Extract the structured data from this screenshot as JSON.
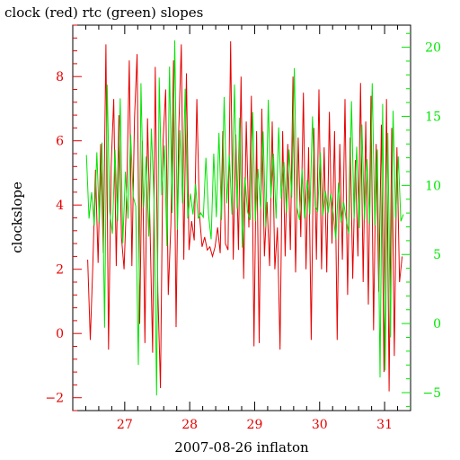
{
  "chart_data": {
    "type": "line",
    "title": "clock (red) rtc (green) slopes",
    "xlabel": "2007-08-26 inflaton",
    "ylabel": "clockslope",
    "xlim": [
      26.2,
      31.4
    ],
    "ylim_left": [
      -2.4,
      9.6
    ],
    "ylim_right": [
      -6.3,
      21.6
    ],
    "x_ticks": [
      27,
      28,
      29,
      30,
      31
    ],
    "x_tick_labels": [
      "27",
      "28",
      "29",
      "30",
      "31"
    ],
    "y_ticks_left": [
      -2,
      0,
      2,
      4,
      6,
      8
    ],
    "y_tick_labels_left": [
      "−2",
      "0",
      "2",
      "4",
      "6",
      "8"
    ],
    "y_ticks_right": [
      -5,
      0,
      5,
      10,
      15,
      20
    ],
    "y_tick_labels_right": [
      "−5",
      "0",
      "5",
      "10",
      "15",
      "20"
    ],
    "grid": false,
    "colors": {
      "axes": "#000000",
      "left_axis": "#e60000",
      "right_axis": "#00e600"
    },
    "series": [
      {
        "color": "#e60000",
        "axis": "left",
        "x": [
          26.43,
          26.47,
          26.51,
          26.55,
          26.59,
          26.63,
          26.67,
          26.71,
          26.75,
          26.79,
          26.83,
          26.87,
          26.91,
          26.95,
          26.99,
          27.03,
          27.07,
          27.11,
          27.15,
          27.19,
          27.23,
          27.27,
          27.31,
          27.35,
          27.39,
          27.43,
          27.47,
          27.51,
          27.55,
          27.59,
          27.63,
          27.67,
          27.71,
          27.75,
          27.79,
          27.83,
          27.87,
          27.91,
          27.95,
          27.99,
          28.03,
          28.07,
          28.11,
          28.15,
          28.19,
          28.23,
          28.27,
          28.31,
          28.35,
          28.39,
          28.43,
          28.47,
          28.51,
          28.55,
          28.59,
          28.63,
          28.67,
          28.71,
          28.75,
          28.79,
          28.83,
          28.87,
          28.91,
          28.95,
          28.99,
          29.03,
          29.07,
          29.11,
          29.15,
          29.19,
          29.23,
          29.27,
          29.31,
          29.35,
          29.39,
          29.43,
          29.47,
          29.51,
          29.55,
          29.59,
          29.63,
          29.67,
          29.71,
          29.75,
          29.79,
          29.83,
          29.87,
          29.91,
          29.95,
          29.99,
          30.03,
          30.07,
          30.11,
          30.15,
          30.19,
          30.23,
          30.27,
          30.31,
          30.35,
          30.39,
          30.43,
          30.47,
          30.51,
          30.55,
          30.59,
          30.63,
          30.67,
          30.71,
          30.75,
          30.79,
          30.83,
          30.87,
          30.91,
          30.95,
          30.99,
          31.03,
          31.07,
          31.11,
          31.15,
          31.19,
          31.23,
          31.27
        ],
        "y": [
          2.3,
          -0.2,
          2.2,
          5.1,
          2.2,
          5.9,
          2.5,
          9.0,
          -0.5,
          5.2,
          7.3,
          2.1,
          6.8,
          3.0,
          2.0,
          4.3,
          8.5,
          2.1,
          6.7,
          8.7,
          0.3,
          6.0,
          -0.3,
          6.7,
          3.3,
          -0.6,
          8.3,
          1.3,
          -1.7,
          6.0,
          7.6,
          1.2,
          3.4,
          8.5,
          0.2,
          6.3,
          9.0,
          2.3,
          8.1,
          2.6,
          3.5,
          2.9,
          7.3,
          3.7,
          2.7,
          3.0,
          2.6,
          2.7,
          2.4,
          2.7,
          3.3,
          2.5,
          6.3,
          2.8,
          2.6,
          9.1,
          2.3,
          6.2,
          2.6,
          8.0,
          1.7,
          6.6,
          3.3,
          7.4,
          -0.4,
          6.3,
          -0.3,
          7.0,
          2.4,
          4.1,
          2.1,
          6.6,
          2.0,
          3.3,
          -0.5,
          6.3,
          2.4,
          5.9,
          2.6,
          8.0,
          1.9,
          6.1,
          3.0,
          7.5,
          2.0,
          5.8,
          -0.2,
          6.4,
          2.3,
          7.6,
          2.0,
          5.8,
          1.9,
          6.9,
          2.8,
          6.3,
          -0.2,
          5.9,
          2.3,
          7.3,
          1.2,
          6.1,
          1.7,
          5.4,
          2.4,
          7.8,
          1.6,
          6.6,
          0.9,
          7.4,
          0.1,
          5.9,
          1.3,
          6.5,
          -1.2,
          7.3,
          -1.8,
          6.4,
          -0.7,
          5.8,
          1.6,
          2.4
        ]
      },
      {
        "color": "#00e600",
        "axis": "right",
        "x": [
          26.41,
          26.45,
          26.49,
          26.53,
          26.57,
          26.61,
          26.65,
          26.69,
          26.73,
          26.77,
          26.81,
          26.85,
          26.89,
          26.93,
          26.97,
          27.01,
          27.05,
          27.09,
          27.13,
          27.17,
          27.21,
          27.25,
          27.29,
          27.33,
          27.37,
          27.41,
          27.45,
          27.49,
          27.53,
          27.57,
          27.61,
          27.65,
          27.69,
          27.73,
          27.77,
          27.81,
          27.85,
          27.89,
          27.93,
          27.97,
          28.01,
          28.05,
          28.09,
          28.13,
          28.17,
          28.21,
          28.25,
          28.29,
          28.33,
          28.37,
          28.41,
          28.45,
          28.49,
          28.53,
          28.57,
          28.61,
          28.65,
          28.69,
          28.73,
          28.77,
          28.81,
          28.85,
          28.89,
          28.93,
          28.97,
          29.01,
          29.05,
          29.09,
          29.13,
          29.17,
          29.21,
          29.25,
          29.29,
          29.33,
          29.37,
          29.41,
          29.45,
          29.49,
          29.53,
          29.57,
          29.61,
          29.65,
          29.69,
          29.73,
          29.77,
          29.81,
          29.85,
          29.89,
          29.93,
          29.97,
          30.01,
          30.05,
          30.09,
          30.13,
          30.17,
          30.21,
          30.25,
          30.29,
          30.33,
          30.37,
          30.41,
          30.45,
          30.49,
          30.53,
          30.57,
          30.61,
          30.65,
          30.69,
          30.73,
          30.77,
          30.81,
          30.85,
          30.89,
          30.93,
          30.97,
          31.01,
          31.05,
          31.09,
          31.13,
          31.17,
          31.21,
          31.25,
          31.29
        ],
        "y": [
          12.2,
          7.6,
          9.5,
          7.1,
          12.4,
          7.3,
          13.1,
          -0.3,
          17.3,
          8.1,
          6.5,
          12.6,
          7.4,
          16.3,
          5.8,
          11.0,
          7.6,
          13.7,
          9.2,
          8.5,
          -3.0,
          17.4,
          8.4,
          12.1,
          6.3,
          14.1,
          9.0,
          -5.2,
          17.8,
          9.3,
          12.9,
          5.6,
          18.6,
          8.0,
          20.5,
          6.8,
          14.0,
          8.7,
          17.0,
          7.6,
          9.4,
          7.9,
          10.1,
          7.6,
          8.0,
          7.7,
          12.0,
          7.9,
          6.1,
          12.3,
          7.7,
          13.8,
          7.5,
          16.4,
          8.7,
          12.2,
          7.9,
          17.3,
          8.3,
          14.9,
          5.5,
          10.6,
          8.1,
          7.5,
          15.3,
          7.4,
          11.2,
          8.3,
          13.9,
          7.0,
          16.2,
          9.1,
          12.3,
          7.6,
          14.2,
          9.0,
          11.7,
          8.0,
          12.6,
          9.1,
          18.5,
          8.4,
          7.5,
          11.2,
          7.6,
          10.4,
          7.9,
          15.0,
          8.5,
          8.1,
          12.4,
          7.8,
          9.6,
          8.0,
          9.4,
          7.9,
          6.1,
          10.2,
          7.3,
          8.8,
          7.5,
          6.5,
          16.1,
          7.6,
          12.8,
          6.9,
          14.4,
          7.5,
          11.9,
          7.2,
          17.4,
          7.1,
          12.6,
          -3.9,
          15.9,
          -3.4,
          13.8,
          -1.0,
          15.4,
          7.6,
          12.1,
          7.4,
          7.9
        ]
      }
    ]
  }
}
